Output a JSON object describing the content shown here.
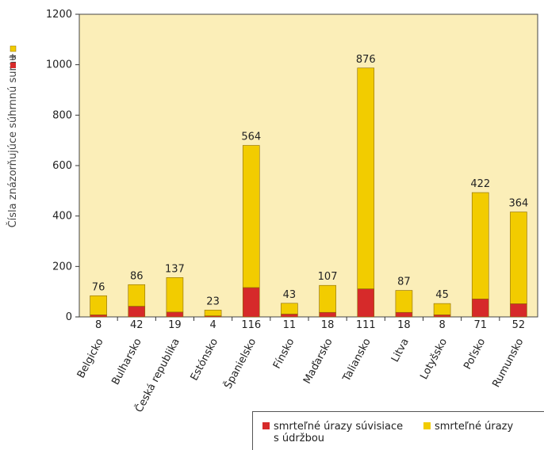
{
  "chart_data": {
    "type": "bar",
    "stacked": true,
    "title": "",
    "ylabel": "Čísla znázorňujúce súhrnnú sumu",
    "ylim": [
      0,
      1200
    ],
    "yticks": [
      0,
      200,
      400,
      600,
      800,
      1000,
      1200
    ],
    "grid": false,
    "legend_position": "bottom-right",
    "categories": [
      "Belgicko",
      "Bulharsko",
      "Česká republika",
      "Estónsko",
      "Španielsko",
      "Fínsko",
      "Maďarsko",
      "Taliansko",
      "Litva",
      "Lotyšsko",
      "Poľsko",
      "Rumunsko"
    ],
    "series": [
      {
        "name": "smrteľné úrazy súvisiace s údržbou",
        "color": "#d62a2a",
        "values": [
          8,
          42,
          19,
          4,
          116,
          11,
          18,
          111,
          18,
          8,
          71,
          52
        ]
      },
      {
        "name": "smrteľné úrazy",
        "color": "#f2cc00",
        "values": [
          76,
          86,
          137,
          23,
          564,
          43,
          107,
          876,
          87,
          45,
          422,
          364
        ]
      }
    ]
  },
  "legend": {
    "maintenance_line1": "smrteľné úrazy súvisiace",
    "maintenance_line2": "s údržbou",
    "fatal": "smrteľné úrazy"
  },
  "colors": {
    "plot_bg": "#fbeeb8",
    "bar_outline": "#8a6a00"
  }
}
